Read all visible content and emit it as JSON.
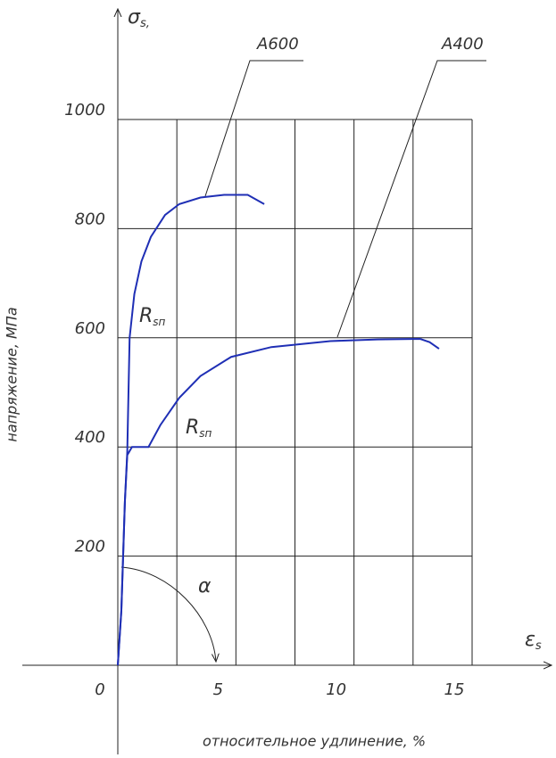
{
  "chart_data": {
    "type": "line",
    "y_axis_symbol": "σ",
    "y_axis_symbol_sub": "s,",
    "x_axis_symbol": "ε",
    "x_axis_symbol_sub": "s",
    "ylabel": "напряжение, МПа",
    "xlabel": "относительное удлинение, %",
    "xlim": [
      0,
      15
    ],
    "ylim": [
      0,
      1000
    ],
    "xticks": [
      0,
      5,
      10,
      15
    ],
    "yticks": [
      200,
      400,
      600,
      800,
      1000
    ],
    "x_grid": [
      2.5,
      5,
      7.5,
      10,
      12.5,
      15
    ],
    "grid": true,
    "series": [
      {
        "name": "A600",
        "color": "#1f2fb5",
        "x": [
          0,
          0.15,
          0.3,
          0.4,
          0.5,
          0.7,
          1.0,
          1.4,
          2.0,
          2.6,
          3.5,
          4.5,
          5.5,
          6.2
        ],
        "values": [
          0,
          100,
          300,
          390,
          600,
          680,
          740,
          785,
          825,
          845,
          857,
          862,
          862,
          845
        ]
      },
      {
        "name": "A400",
        "color": "#1f2fb5",
        "x": [
          0,
          0.15,
          0.3,
          0.4,
          0.6,
          1.3,
          1.8,
          2.6,
          3.5,
          4.8,
          6.5,
          9,
          11,
          12.8,
          13.2,
          13.6
        ],
        "values": [
          0,
          100,
          300,
          385,
          400,
          400,
          440,
          490,
          530,
          565,
          583,
          594,
          597,
          598,
          592,
          580
        ]
      }
    ],
    "annotations": [
      {
        "text": "R",
        "sub": "sп"
      },
      {
        "text": "R",
        "sub": "sп"
      },
      {
        "text": "α"
      }
    ]
  }
}
